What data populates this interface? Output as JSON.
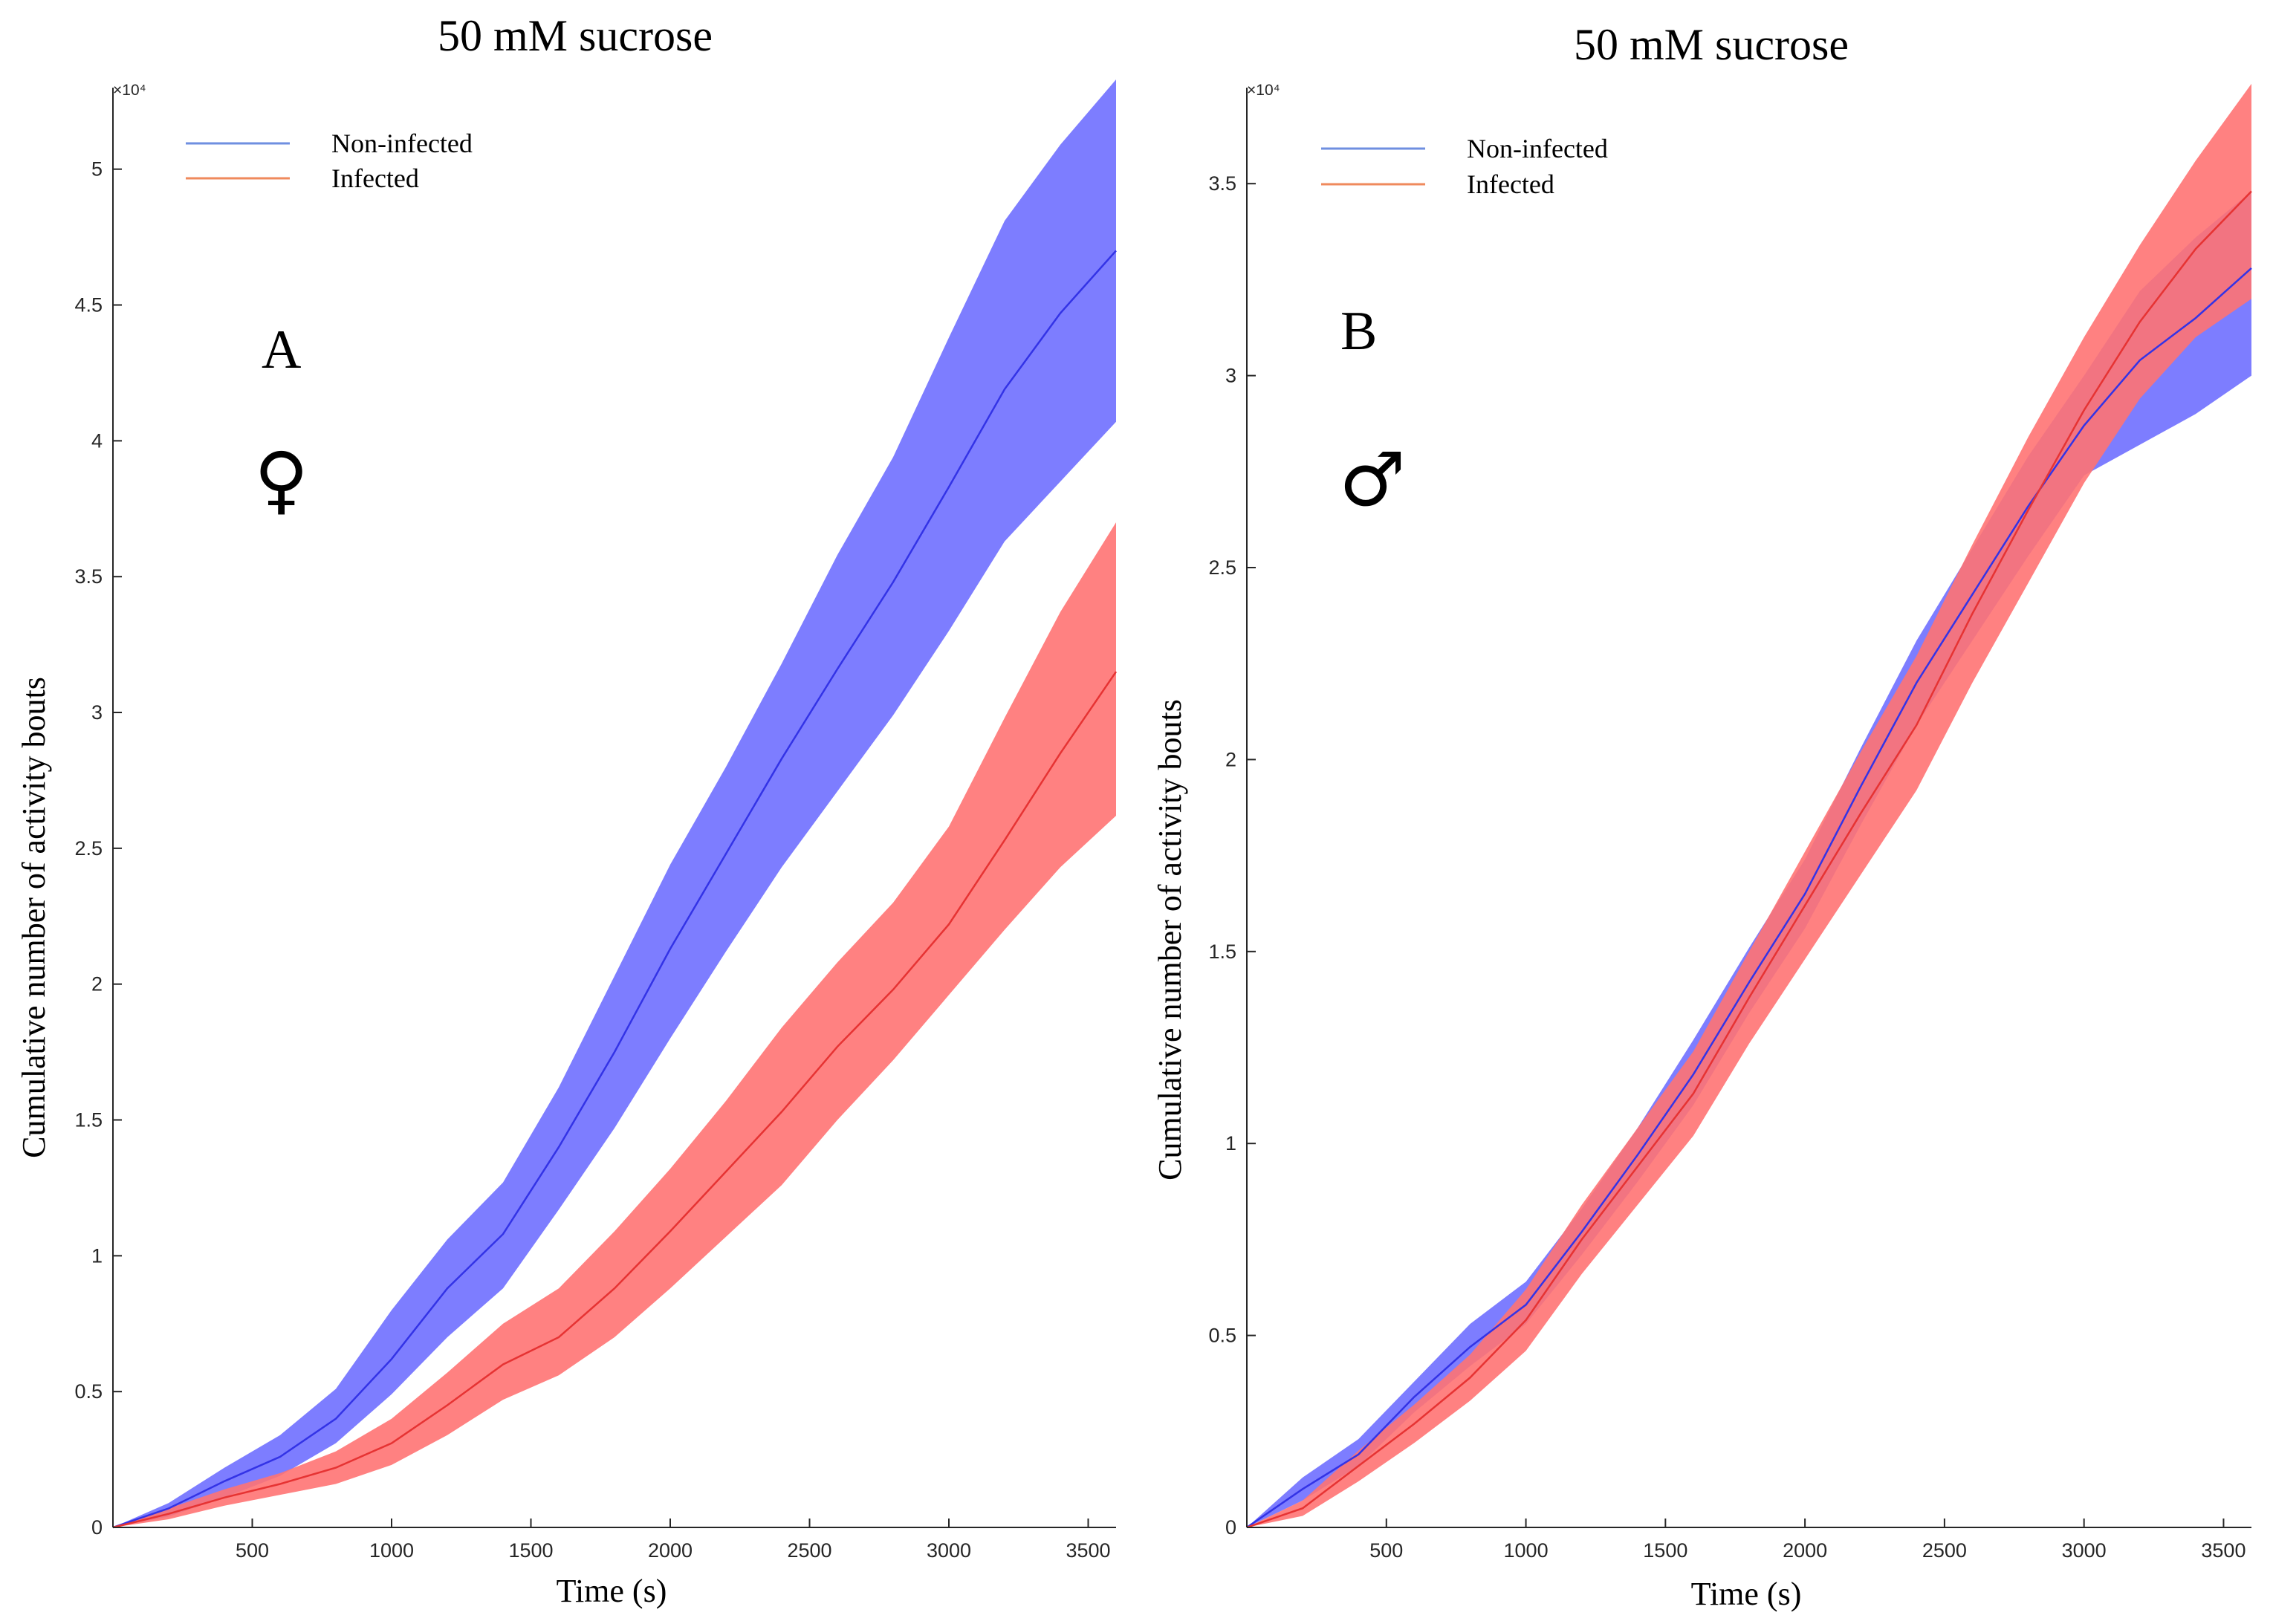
{
  "colors": {
    "noninfected_band": "#7a7aff",
    "noninfected_line": "#3333e6",
    "infected_band": "#ff7373",
    "infected_line": "#e63333",
    "legend_noninfected": "#6f8fe0",
    "legend_infected": "#ef8a5c"
  },
  "chart_data": [
    {
      "type": "area",
      "panel": "A",
      "sex": "♀",
      "title": "50 mM sucrose",
      "xlabel": "Time (s)",
      "ylabel": "Cumulative number of activity bouts",
      "y_exponent_label": "×10⁴",
      "xlim": [
        0,
        3600
      ],
      "ylim": [
        0,
        5.3
      ],
      "xticks": [
        500,
        1000,
        1500,
        2000,
        2500,
        3000,
        3500
      ],
      "yticks": [
        0,
        0.5,
        1,
        1.5,
        2,
        2.5,
        3,
        3.5,
        4,
        4.5,
        5
      ],
      "legend": {
        "position": "top-left"
      },
      "x": [
        0,
        200,
        400,
        600,
        800,
        1000,
        1200,
        1400,
        1600,
        1800,
        2000,
        2200,
        2400,
        2600,
        2800,
        3000,
        3200,
        3400,
        3600
      ],
      "series": [
        {
          "name": "Non-infected",
          "mean": [
            0,
            0.07,
            0.17,
            0.26,
            0.4,
            0.62,
            0.88,
            1.08,
            1.4,
            1.75,
            2.13,
            2.48,
            2.83,
            3.16,
            3.48,
            3.83,
            4.19,
            4.47,
            4.7
          ],
          "lower": [
            0,
            0.04,
            0.11,
            0.19,
            0.31,
            0.49,
            0.7,
            0.88,
            1.17,
            1.47,
            1.8,
            2.12,
            2.43,
            2.71,
            2.99,
            3.3,
            3.63,
            3.85,
            4.07
          ],
          "upper": [
            0,
            0.09,
            0.22,
            0.34,
            0.51,
            0.8,
            1.06,
            1.27,
            1.62,
            2.03,
            2.44,
            2.8,
            3.18,
            3.58,
            3.94,
            4.38,
            4.81,
            5.09,
            5.33
          ]
        },
        {
          "name": "Infected",
          "mean": [
            0,
            0.05,
            0.11,
            0.16,
            0.22,
            0.31,
            0.45,
            0.6,
            0.7,
            0.88,
            1.09,
            1.31,
            1.53,
            1.77,
            1.98,
            2.22,
            2.53,
            2.85,
            3.15
          ],
          "lower": [
            0,
            0.03,
            0.08,
            0.12,
            0.16,
            0.23,
            0.34,
            0.47,
            0.56,
            0.7,
            0.88,
            1.07,
            1.26,
            1.5,
            1.72,
            1.96,
            2.2,
            2.43,
            2.62
          ],
          "upper": [
            0,
            0.07,
            0.14,
            0.2,
            0.28,
            0.4,
            0.57,
            0.75,
            0.88,
            1.09,
            1.32,
            1.57,
            1.84,
            2.08,
            2.3,
            2.58,
            2.98,
            3.37,
            3.7
          ]
        }
      ]
    },
    {
      "type": "area",
      "panel": "B",
      "sex": "♂",
      "title": "50 mM sucrose",
      "xlabel": "Time (s)",
      "ylabel": "Cumulative number of activity bouts",
      "y_exponent_label": "×10⁴",
      "xlim": [
        0,
        3600
      ],
      "ylim": [
        0,
        3.75
      ],
      "xticks": [
        500,
        1000,
        1500,
        2000,
        2500,
        3000,
        3500
      ],
      "yticks": [
        0,
        0.5,
        1,
        1.5,
        2,
        2.5,
        3,
        3.5
      ],
      "legend": {
        "position": "top-left"
      },
      "x": [
        0,
        200,
        400,
        600,
        800,
        1000,
        1200,
        1400,
        1600,
        1800,
        2000,
        2200,
        2400,
        2600,
        2800,
        3000,
        3200,
        3400,
        3600
      ],
      "series": [
        {
          "name": "Non-infected",
          "mean": [
            0,
            0.1,
            0.19,
            0.34,
            0.47,
            0.58,
            0.77,
            0.97,
            1.18,
            1.42,
            1.65,
            1.93,
            2.2,
            2.43,
            2.66,
            2.87,
            3.04,
            3.15,
            3.28
          ],
          "lower": [
            0,
            0.07,
            0.16,
            0.3,
            0.42,
            0.53,
            0.71,
            0.9,
            1.1,
            1.34,
            1.56,
            1.83,
            2.09,
            2.31,
            2.53,
            2.74,
            2.82,
            2.9,
            3.0
          ],
          "upper": [
            0,
            0.13,
            0.23,
            0.38,
            0.53,
            0.64,
            0.83,
            1.04,
            1.27,
            1.51,
            1.74,
            2.03,
            2.31,
            2.55,
            2.79,
            3.0,
            3.22,
            3.36,
            3.48
          ]
        },
        {
          "name": "Infected",
          "mean": [
            0,
            0.05,
            0.16,
            0.27,
            0.39,
            0.54,
            0.75,
            0.94,
            1.13,
            1.38,
            1.62,
            1.86,
            2.09,
            2.38,
            2.65,
            2.91,
            3.14,
            3.33,
            3.48
          ],
          "lower": [
            0,
            0.03,
            0.12,
            0.22,
            0.33,
            0.46,
            0.66,
            0.84,
            1.02,
            1.26,
            1.48,
            1.7,
            1.92,
            2.2,
            2.46,
            2.72,
            2.94,
            3.1,
            3.2
          ],
          "upper": [
            0,
            0.07,
            0.2,
            0.32,
            0.45,
            0.62,
            0.84,
            1.04,
            1.24,
            1.5,
            1.76,
            2.02,
            2.27,
            2.56,
            2.84,
            3.1,
            3.34,
            3.56,
            3.76
          ]
        }
      ]
    }
  ]
}
